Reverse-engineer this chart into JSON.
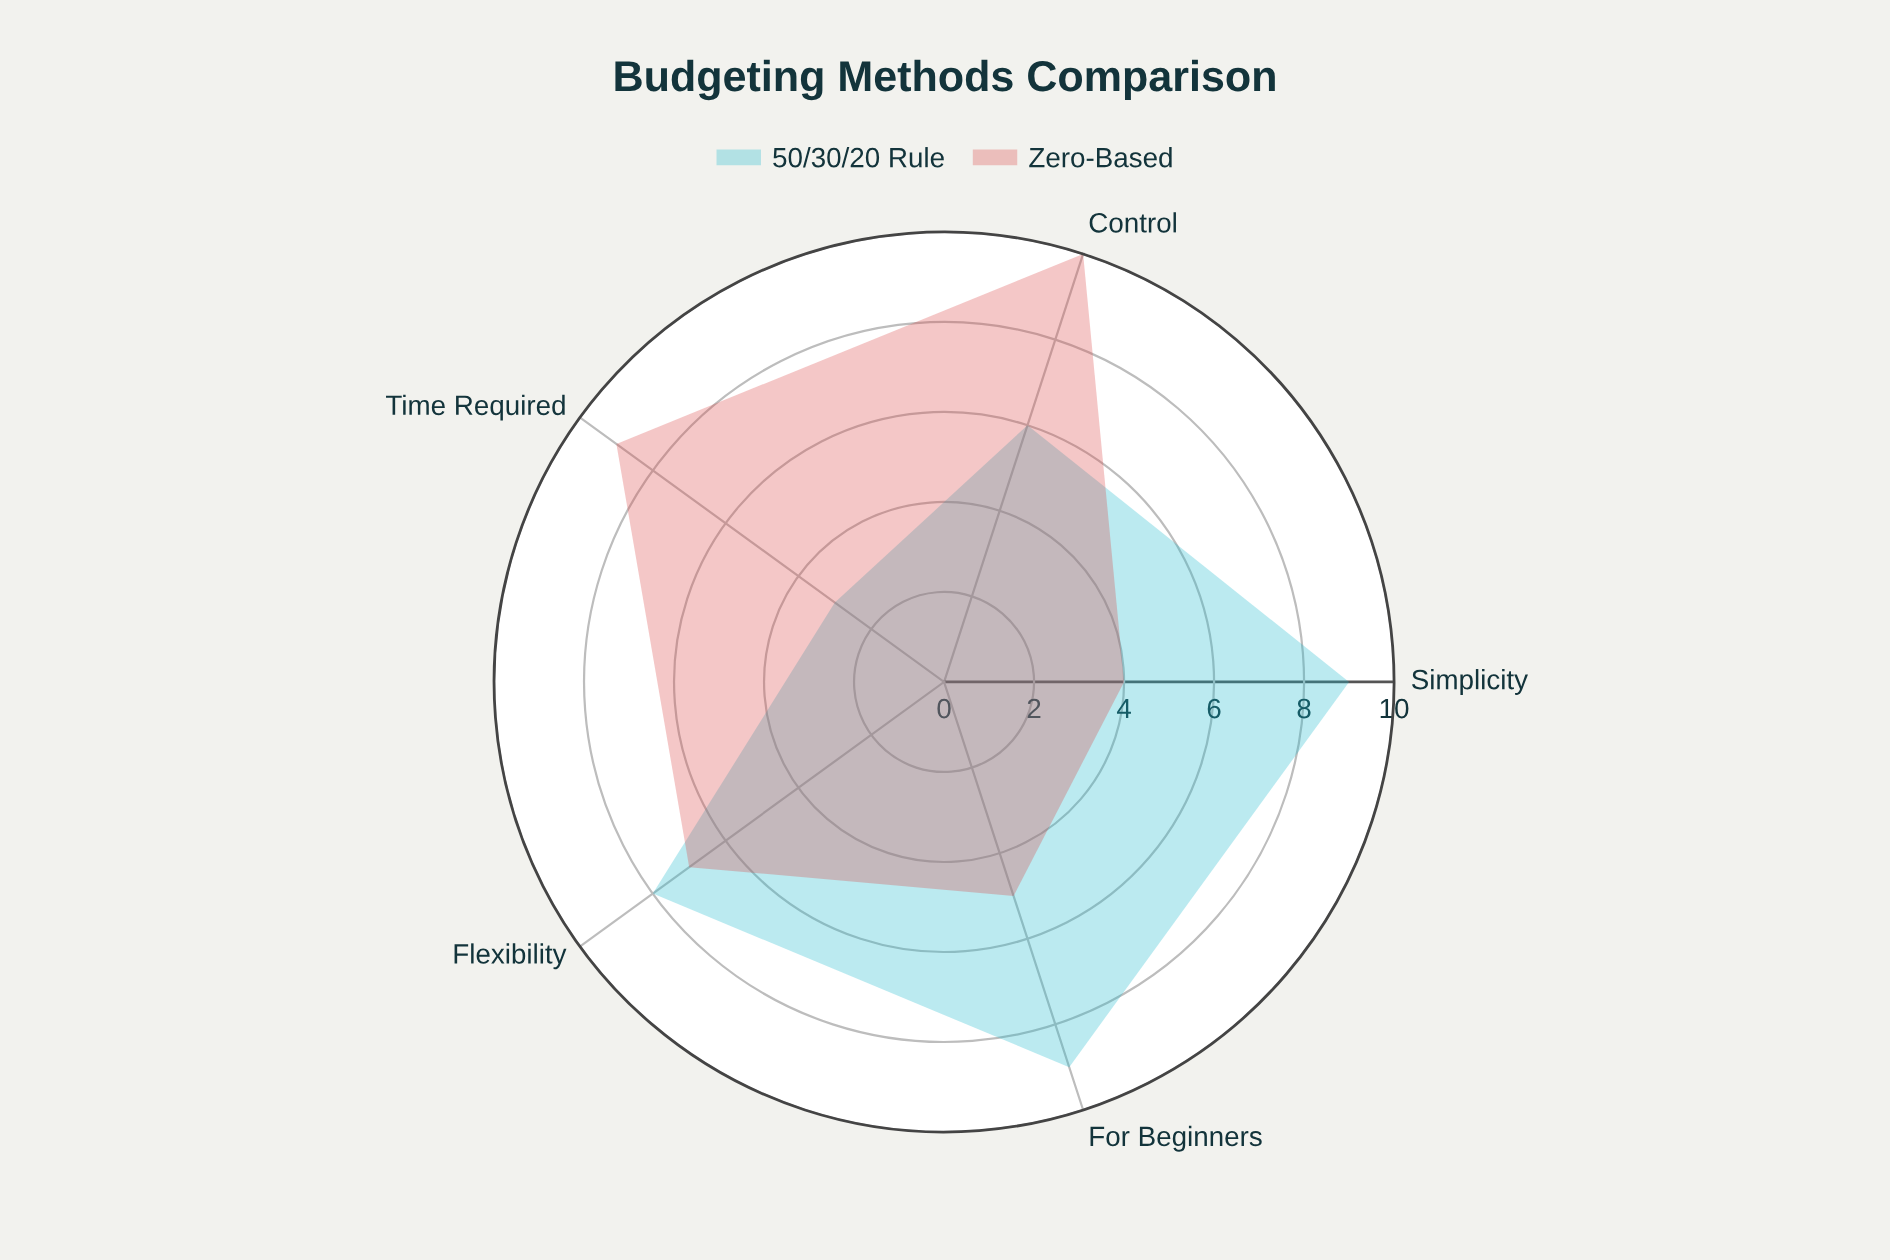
{
  "chart_data": {
    "type": "radar",
    "title": "Budgeting Methods Comparison",
    "categories": [
      "Control",
      "Simplicity",
      "For Beginners",
      "Flexibility",
      "Time Required"
    ],
    "series": [
      {
        "name": "50/30/20 Rule",
        "color": "#1fb8cd",
        "values": [
          6,
          9,
          9,
          8,
          3
        ]
      },
      {
        "name": "Zero-Based",
        "color": "#db4545",
        "values": [
          10,
          4,
          5,
          7,
          9
        ]
      }
    ],
    "ylim": [
      0,
      10
    ],
    "yticks": [
      0,
      2,
      4,
      6,
      8,
      10
    ],
    "grid": true,
    "legend": "top"
  }
}
